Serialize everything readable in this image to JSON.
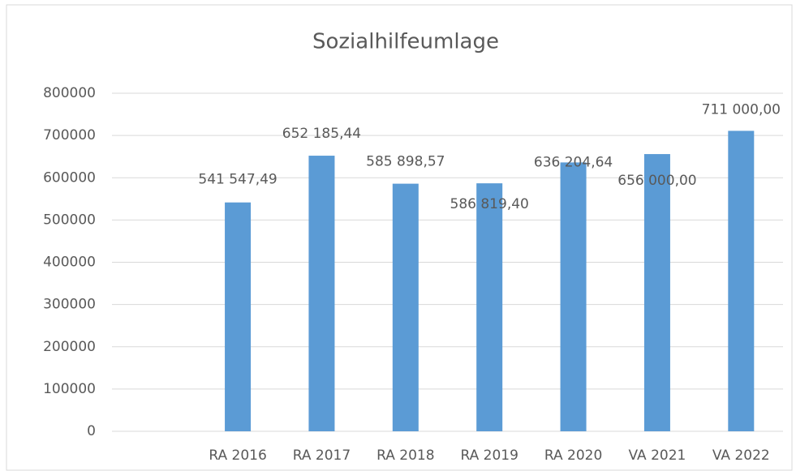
{
  "chart_data": {
    "type": "bar",
    "title": "Sozialhilfeumlage",
    "categories": [
      null,
      "RA 2016",
      "RA 2017",
      "RA 2018",
      "RA 2019",
      "RA 2020",
      "VA 2021",
      "VA 2022"
    ],
    "values": [
      null,
      541547.49,
      652185.44,
      585898.57,
      586819.4,
      636204.64,
      656000.0,
      711000.0
    ],
    "value_labels": [
      null,
      "541 547,49",
      "652 185,44",
      "585 898,57",
      "586 819,40",
      "636 204,64",
      "656 000,00",
      "711 000,00"
    ],
    "color": "#5b9bd5",
    "ylim": [
      0,
      800000
    ],
    "yticks": [
      0,
      100000,
      200000,
      300000,
      400000,
      500000,
      600000,
      700000,
      800000
    ],
    "grid": true
  }
}
